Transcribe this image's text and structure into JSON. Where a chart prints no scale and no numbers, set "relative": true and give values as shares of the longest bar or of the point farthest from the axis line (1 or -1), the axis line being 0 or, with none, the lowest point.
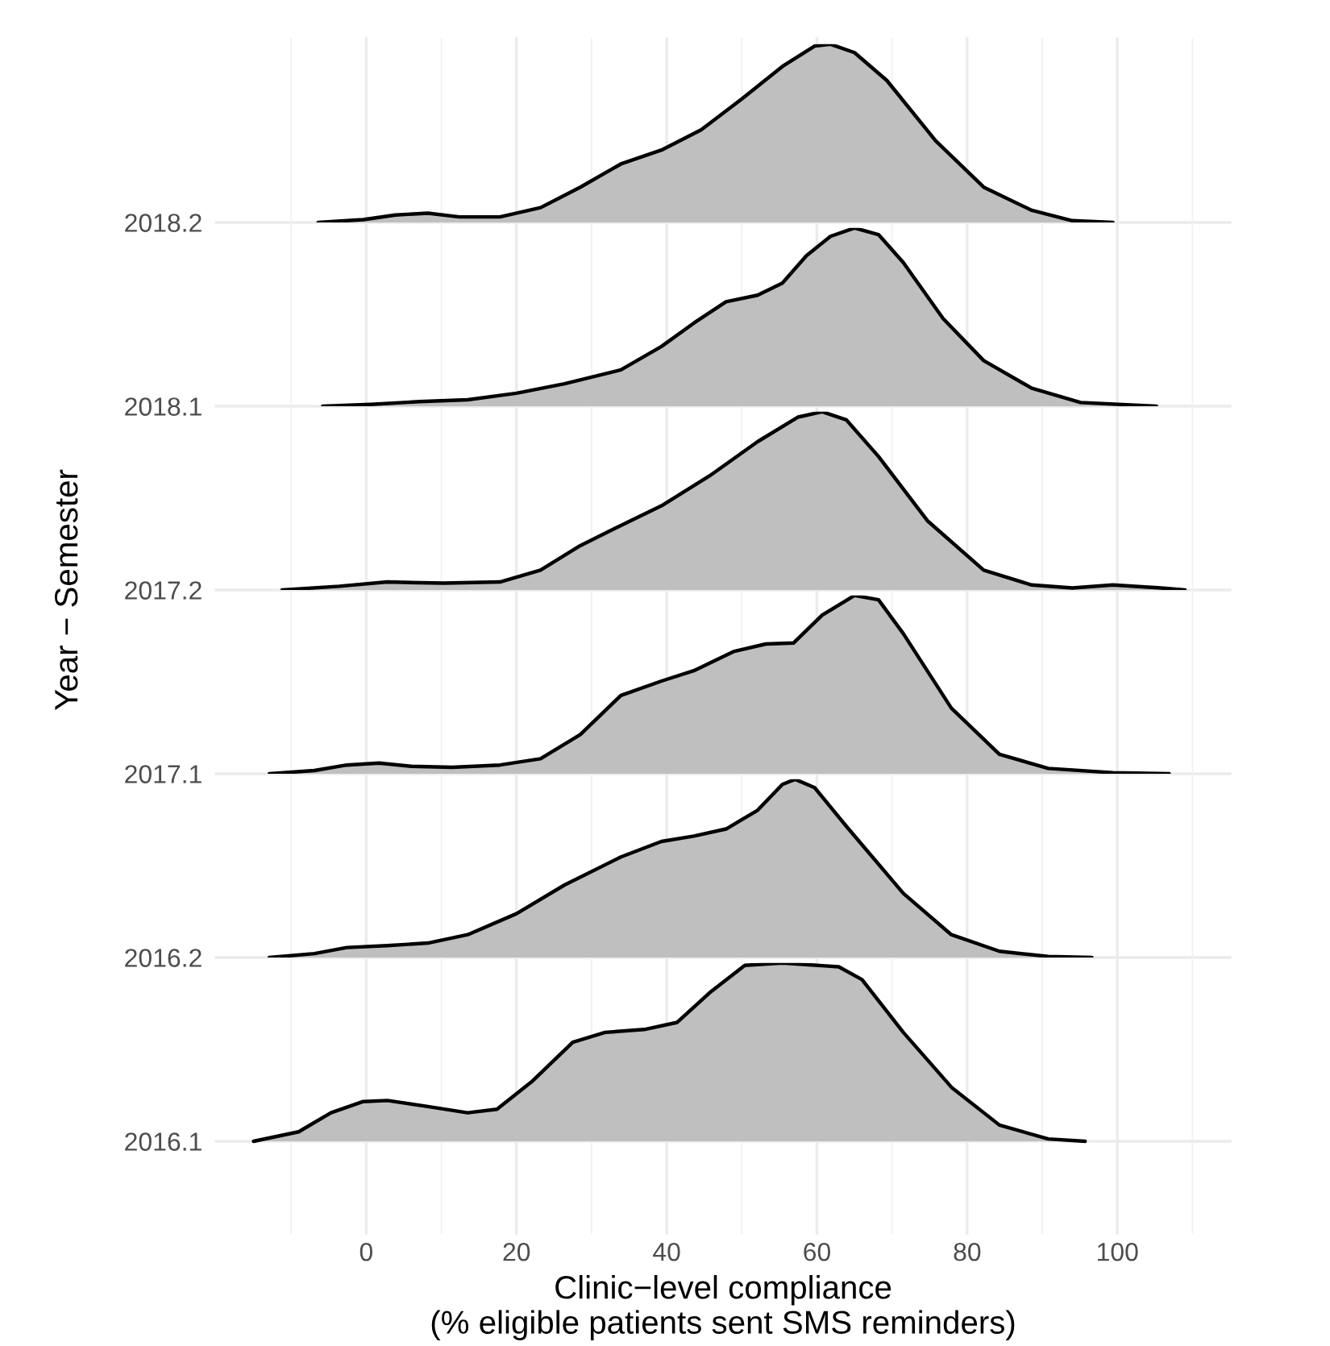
{
  "chart_data": [
    {
      "type": "area",
      "relative": true,
      "xlim": [
        -20,
        115
      ],
      "xticks": [
        0,
        20,
        40,
        60,
        80,
        100
      ],
      "tick_labels": false,
      "grid": true,
      "series": [
        {
          "name": "2018.2",
          "color": "#bfbfbf",
          "x": [
            -6.4,
            -0.4,
            3.9,
            8.2,
            12.4,
            17.8,
            23.2,
            28.5,
            33.9,
            39.3,
            44.6,
            50,
            55.4,
            59.7,
            61.8,
            65,
            69.3,
            75.8,
            82.2,
            88.6,
            94,
            99.4
          ],
          "values": [
            0,
            0.016,
            0.042,
            0.052,
            0.031,
            0.031,
            0.083,
            0.198,
            0.328,
            0.406,
            0.52,
            0.693,
            0.875,
            0.99,
            1,
            0.953,
            0.797,
            0.458,
            0.198,
            0.068,
            0.01,
            0
          ]
        }
      ]
    },
    {
      "type": "area",
      "relative": true,
      "xlim": [
        -20,
        115
      ],
      "xticks": [
        0,
        20,
        40,
        60,
        80,
        100
      ],
      "tick_labels": false,
      "grid": true,
      "series": [
        {
          "name": "2018.1",
          "color": "#bfbfbf",
          "x": [
            -5.8,
            0.6,
            7.1,
            13.5,
            20,
            26.4,
            33.9,
            39.3,
            43.6,
            47.9,
            52.1,
            55.4,
            58.6,
            61.8,
            65,
            68.2,
            71.5,
            76.8,
            82.2,
            88.6,
            95.1,
            105.2
          ],
          "values": [
            0,
            0.01,
            0.026,
            0.036,
            0.073,
            0.126,
            0.204,
            0.335,
            0.466,
            0.586,
            0.623,
            0.691,
            0.844,
            0.953,
            1,
            0.963,
            0.806,
            0.492,
            0.256,
            0.101,
            0.021,
            0
          ]
        }
      ]
    },
    {
      "type": "area",
      "relative": true,
      "ylabel": "Year − Semester",
      "xlim": [
        -20,
        115
      ],
      "xticks": [
        0,
        20,
        40,
        60,
        80,
        100
      ],
      "tick_labels": false,
      "grid": true,
      "series": [
        {
          "name": "2017.2",
          "color": "#bfbfbf",
          "x": [
            -11.2,
            -3.6,
            2.8,
            10.3,
            17.8,
            23.2,
            28.5,
            33.9,
            39.3,
            45.7,
            52.1,
            57.5,
            60.7,
            63.9,
            68.2,
            74.7,
            82.2,
            88.6,
            94,
            99.4,
            105.8,
            109
          ],
          "values": [
            0,
            0.021,
            0.045,
            0.038,
            0.045,
            0.111,
            0.249,
            0.362,
            0.472,
            0.64,
            0.832,
            0.97,
            1,
            0.955,
            0.749,
            0.389,
            0.111,
            0.028,
            0.011,
            0.028,
            0.011,
            0
          ]
        }
      ]
    },
    {
      "type": "area",
      "relative": true,
      "xlim": [
        -20,
        115
      ],
      "xticks": [
        0,
        20,
        40,
        60,
        80,
        100
      ],
      "tick_labels": false,
      "grid": true,
      "series": [
        {
          "name": "2017.1",
          "color": "#bfbfbf",
          "x": [
            -12.9,
            -6.9,
            -2.6,
            1.7,
            6,
            11.4,
            17.8,
            23.2,
            28.5,
            33.9,
            39.3,
            43.6,
            49,
            53.2,
            56.9,
            60.7,
            65,
            68.2,
            71.5,
            77.9,
            84.3,
            90.8,
            99.4,
            106.9
          ],
          "values": [
            0,
            0.018,
            0.049,
            0.06,
            0.042,
            0.036,
            0.049,
            0.084,
            0.22,
            0.439,
            0.52,
            0.578,
            0.687,
            0.728,
            0.734,
            0.89,
            1,
            0.976,
            0.786,
            0.368,
            0.109,
            0.03,
            0.006,
            0
          ]
        }
      ]
    },
    {
      "type": "area",
      "relative": true,
      "xlim": [
        -20,
        115
      ],
      "xticks": [
        0,
        20,
        40,
        60,
        80,
        100
      ],
      "tick_labels": false,
      "grid": true,
      "series": [
        {
          "name": "2016.2",
          "color": "#bfbfbf",
          "x": [
            -12.9,
            -6.9,
            -2.6,
            2.8,
            8.2,
            13.5,
            20,
            26.4,
            33.9,
            39.3,
            43.6,
            47.9,
            52.1,
            55.4,
            57.1,
            59.7,
            63.9,
            71.5,
            77.9,
            84.3,
            90.8,
            96.6
          ],
          "values": [
            0,
            0.022,
            0.056,
            0.067,
            0.081,
            0.128,
            0.246,
            0.407,
            0.564,
            0.651,
            0.681,
            0.721,
            0.826,
            0.971,
            1,
            0.953,
            0.737,
            0.36,
            0.128,
            0.035,
            0.006,
            0
          ]
        }
      ]
    },
    {
      "type": "area",
      "relative": true,
      "xlabel": "Clinic−level compliance\n(% eligible patients sent SMS reminders)",
      "xlim": [
        -20,
        115
      ],
      "xticks": [
        0,
        20,
        40,
        60,
        80,
        100
      ],
      "tick_labels": "x",
      "grid": true,
      "series": [
        {
          "name": "2016.1",
          "color": "#bfbfbf",
          "x": [
            -15,
            -9,
            -4.7,
            -0.4,
            2.8,
            8.2,
            13.5,
            17.4,
            22,
            27.5,
            31.8,
            37,
            41.4,
            45.7,
            50.4,
            55.4,
            62.9,
            66,
            71.5,
            78,
            84.3,
            90.8,
            95.7
          ],
          "values": [
            0,
            0.053,
            0.16,
            0.223,
            0.229,
            0.195,
            0.16,
            0.18,
            0.333,
            0.556,
            0.611,
            0.627,
            0.667,
            0.833,
            0.987,
            1,
            0.979,
            0.907,
            0.611,
            0.299,
            0.091,
            0.013,
            0
          ]
        }
      ]
    }
  ]
}
